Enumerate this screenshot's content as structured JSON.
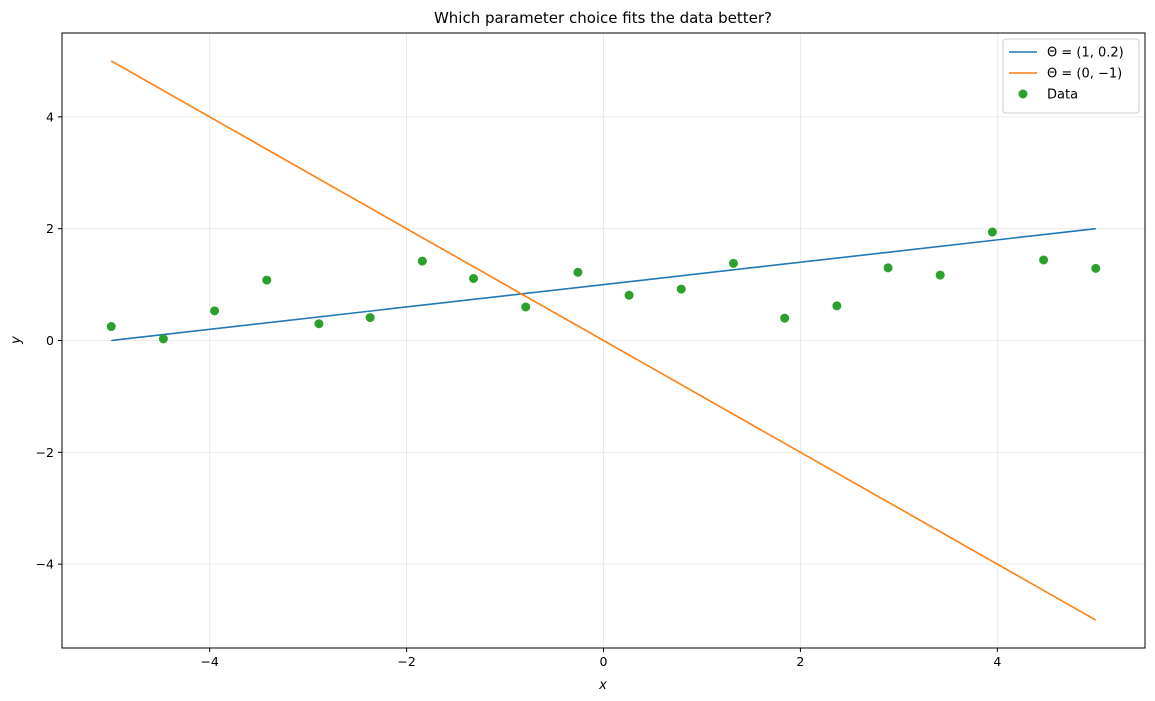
{
  "chart_data": {
    "type": "line",
    "title": "Which parameter choice fits the data better?",
    "xlabel": "x",
    "ylabel": "y",
    "xlim": [
      -5.5,
      5.5
    ],
    "ylim": [
      -5.5,
      5.5
    ],
    "xticks": [
      -4,
      -2,
      0,
      2,
      4
    ],
    "yticks": [
      -4,
      -2,
      0,
      2,
      4
    ],
    "xtick_labels": [
      "−4",
      "−2",
      "0",
      "2",
      "4"
    ],
    "ytick_labels": [
      "−4",
      "−2",
      "0",
      "2",
      "4"
    ],
    "grid": true,
    "legend_position": "top-right",
    "series": [
      {
        "name": "Θ = (1,  0.2)",
        "kind": "line",
        "color": "#1f77b4",
        "x": [
          -5,
          5
        ],
        "y": [
          0,
          2
        ]
      },
      {
        "name": "Θ = (0,  −1)",
        "kind": "line",
        "color": "#ff7f0e",
        "x": [
          -5,
          5
        ],
        "y": [
          5,
          -5
        ]
      },
      {
        "name": "Data",
        "kind": "scatter",
        "color": "#2ca02c",
        "x": [
          -5.0,
          -4.47,
          -3.95,
          -3.42,
          -2.89,
          -2.37,
          -1.84,
          -1.32,
          -0.79,
          -0.26,
          0.26,
          0.79,
          1.32,
          1.84,
          2.37,
          2.89,
          3.42,
          3.95,
          4.47,
          5.0
        ],
        "y": [
          0.25,
          0.03,
          0.53,
          1.08,
          0.3,
          0.41,
          1.42,
          1.11,
          0.6,
          1.22,
          0.81,
          0.92,
          1.38,
          0.4,
          0.62,
          1.3,
          1.17,
          1.94,
          1.44,
          1.29
        ]
      }
    ]
  }
}
